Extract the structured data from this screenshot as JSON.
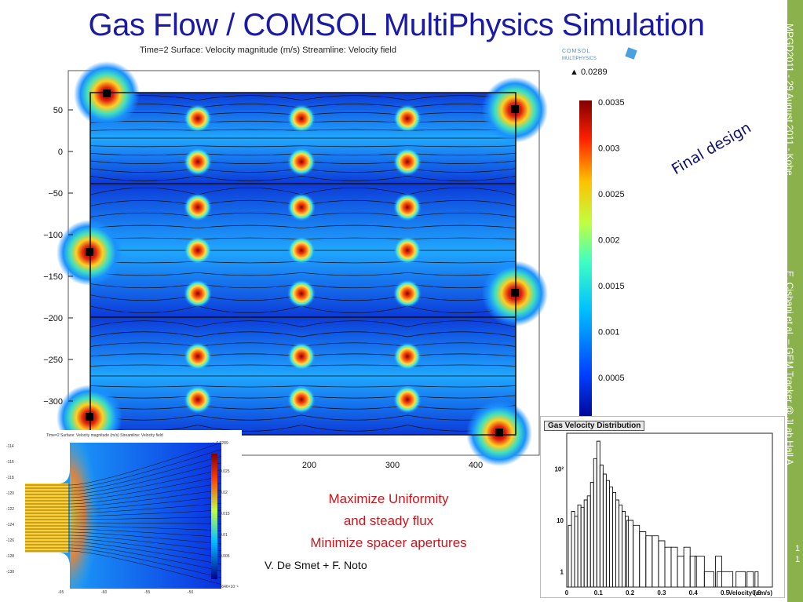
{
  "title": "Gas Flow / COMSOL MultiPhysics Simulation",
  "sidebar": {
    "top_text": "MPGD2011 - 29 August 2011 - Kobe",
    "bottom_text": "E. Cisbani et al. – GEM Tracker @ JLab Hall A",
    "page_number": "1 1"
  },
  "main_plot": {
    "caption": "Time=2  Surface: Velocity magnitude (m/s) Streamline: Velocity field",
    "logo_text": "COMSOL MULTIPHYSICS",
    "max_marker": "▲ 0.0289",
    "colorbar_ticks": [
      "0.0035",
      "0.003",
      "0.0025",
      "0.002",
      "0.0015",
      "0.001",
      "0.0005"
    ],
    "y_ticks": [
      "50",
      "0",
      "−50",
      "−100",
      "−150",
      "−200",
      "−250",
      "−300"
    ],
    "x_ticks": [
      "200",
      "300",
      "400"
    ]
  },
  "annotation": "Final design",
  "tagline": [
    "Maximize Uniformity",
    "and steady flux",
    "Minimize spacer apertures"
  ],
  "credit": "V. De Smet + F. Noto",
  "inset_plot": {
    "caption": "Time=2  Surface: Velocity magnitude (m/s) Streamline: Velocity field",
    "max_marker": "▲ 0.0289",
    "min_marker": "▼ 4.9646×10⁻⁶",
    "y_ticks": [
      "-114",
      "-116",
      "-118",
      "-120",
      "-122",
      "-124",
      "-126",
      "-128",
      "-130"
    ],
    "x_ticks": [
      "-65",
      "-60",
      "-55",
      "-50"
    ],
    "colorbar_ticks": [
      "0.025",
      "0.02",
      "0.015",
      "0.01",
      "0.005"
    ]
  },
  "histogram": {
    "title": "Gas Velocity Distribution",
    "xlabel": "Velocity (cm/s)",
    "x_ticks": [
      "0",
      "0.1",
      "0.2",
      "0.3",
      "0.4",
      "0.5",
      "0.6"
    ],
    "y_ticks": [
      "10²",
      "10",
      "1"
    ]
  },
  "chart_data": {
    "type": "bar",
    "title": "Gas Velocity Distribution",
    "xlabel": "Velocity (cm/s)",
    "ylabel": "",
    "log_y": true,
    "xlim": [
      0,
      0.65
    ],
    "ylim": [
      0.5,
      500
    ],
    "x": [
      0.01,
      0.02,
      0.03,
      0.04,
      0.05,
      0.06,
      0.07,
      0.08,
      0.09,
      0.1,
      0.11,
      0.12,
      0.13,
      0.14,
      0.15,
      0.16,
      0.17,
      0.18,
      0.19,
      0.2,
      0.22,
      0.24,
      0.26,
      0.28,
      0.3,
      0.32,
      0.34,
      0.36,
      0.38,
      0.4,
      0.42,
      0.45,
      0.48,
      0.5,
      0.55,
      0.58,
      0.6
    ],
    "values": [
      8,
      15,
      12,
      20,
      18,
      25,
      30,
      55,
      160,
      350,
      120,
      80,
      60,
      45,
      35,
      25,
      20,
      15,
      12,
      10,
      8,
      6,
      5,
      5,
      4,
      3,
      3,
      2,
      3,
      2,
      2,
      1,
      2,
      1,
      1,
      1,
      1
    ]
  },
  "colors": {
    "title": "#1a1aa6",
    "sidebar": "#8ab14b",
    "tagline": "#c8161d",
    "field_low": "#0a20c8",
    "field_mid": "#1aa0ff",
    "field_high": "#cc1010"
  }
}
